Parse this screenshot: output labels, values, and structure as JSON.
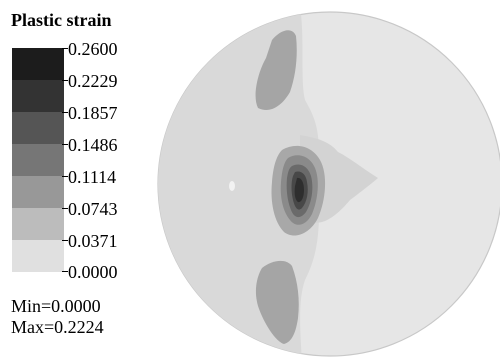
{
  "legend": {
    "title": "Plastic strain",
    "levels": [
      "0.2600",
      "0.2229",
      "0.1857",
      "0.1486",
      "0.1114",
      "0.0743",
      "0.0371",
      "0.0000"
    ],
    "colors": [
      "#1c1c1c",
      "#333333",
      "#555555",
      "#767676",
      "#989898",
      "#bcbcbc",
      "#d7d7d7",
      "#e6e6e6"
    ]
  },
  "stats": {
    "min": "Min=0.0000",
    "max": "Max=0.2224"
  }
}
